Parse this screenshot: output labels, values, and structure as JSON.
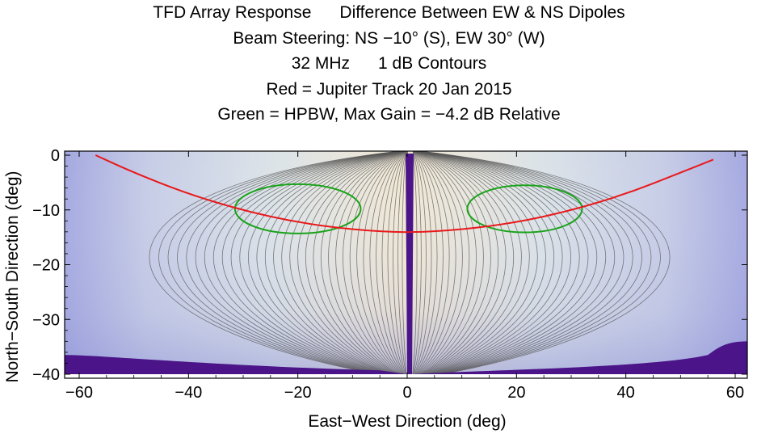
{
  "title_lines": [
    "TFD Array Response      Difference Between EW & NS Dipoles",
    "Beam Steering: NS −10° (S), EW 30° (W)",
    "32 MHz      1 dB Contours",
    "Red = Jupiter Track 20 Jan 2015",
    "Green = HPBW, Max Gain = −4.2 dB Relative"
  ],
  "chart_data": {
    "type": "contour",
    "xlabel": "East−West Direction (deg)",
    "ylabel": "North−South Direction (deg)",
    "xlim": [
      -60,
      60
    ],
    "ylim": [
      -40,
      0
    ],
    "x_ticks": [
      -60,
      -40,
      -20,
      0,
      20,
      40,
      60
    ],
    "y_ticks": [
      0,
      -10,
      -20,
      -30,
      -40
    ],
    "x_tick_labels": [
      "−60",
      "−40",
      "−20",
      "0",
      "20",
      "40",
      "60"
    ],
    "y_tick_labels": [
      "0",
      "−10",
      "−20",
      "−30",
      "−40"
    ],
    "contour_interval_db": 1,
    "colors": {
      "track": "#e8191b",
      "hpbw": "#1aa31a",
      "contour_line": "#555555",
      "null_fill": "#4b1488",
      "high": "#f2e8d4",
      "low": "#a4a8e0"
    },
    "series": [
      {
        "name": "Jupiter Track 20 Jan 2015",
        "color": "#e8191b",
        "points": [
          [
            -57,
            0
          ],
          [
            -50,
            -3.2
          ],
          [
            -40,
            -7.1
          ],
          [
            -30,
            -10.1
          ],
          [
            -20,
            -12.3
          ],
          [
            -10,
            -13.6
          ],
          [
            0,
            -14.2
          ],
          [
            10,
            -13.6
          ],
          [
            20,
            -12.3
          ],
          [
            30,
            -10.1
          ],
          [
            40,
            -7.1
          ],
          [
            50,
            -3.2
          ],
          [
            56,
            -0.8
          ]
        ]
      },
      {
        "name": "HPBW",
        "color": "#1aa31a",
        "ellipses": [
          {
            "cx": -20,
            "cy": -9.8,
            "rx": 11.5,
            "ry": 4.5
          },
          {
            "cx": 21.5,
            "cy": -9.8,
            "rx": 10.5,
            "ry": 4.3
          }
        ]
      }
    ]
  }
}
